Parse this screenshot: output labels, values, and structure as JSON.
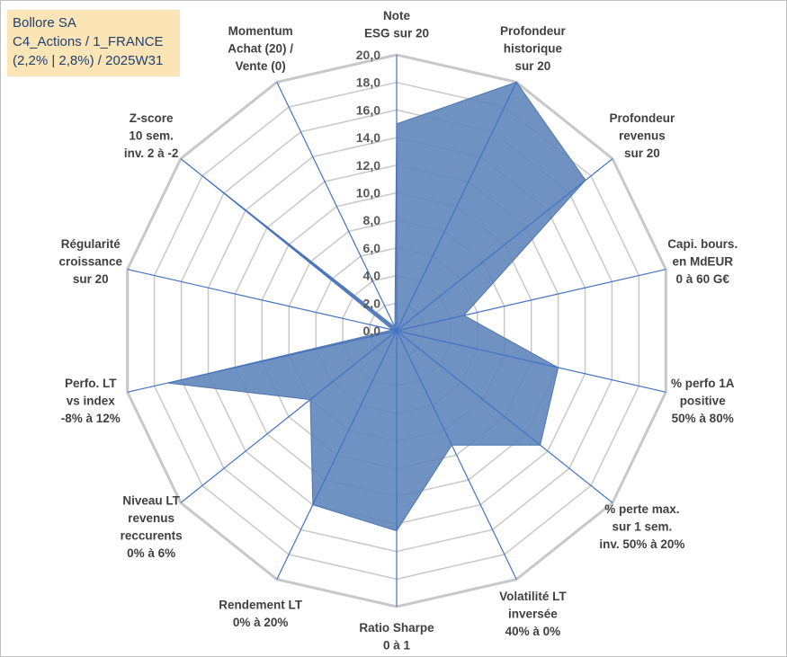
{
  "header": {
    "line1": "Bollore SA",
    "line2": "C4_Actions / 1_FRANCE",
    "line3": "(2,2% | 2,8%) / 2025W31"
  },
  "chart_data": {
    "type": "radar",
    "r_range": [
      0,
      20
    ],
    "tick_values": [
      0,
      2,
      4,
      6,
      8,
      10,
      12,
      14,
      16,
      18,
      20
    ],
    "tick_labels": [
      "0,0",
      "2,0",
      "4,0",
      "6,0",
      "8,0",
      "10,0",
      "12,0",
      "14,0",
      "16,0",
      "18,0",
      "20,0"
    ],
    "axes": [
      {
        "label": [
          "Note",
          "ESG sur 20"
        ],
        "value": 15
      },
      {
        "label": [
          "Profondeur",
          "historique",
          "sur 20"
        ],
        "value": 20
      },
      {
        "label": [
          "Profondeur",
          "revenus",
          "sur 20"
        ],
        "value": 17.5
      },
      {
        "label": [
          "Capi. bours.",
          "en MdEUR",
          "0 à 60 G€"
        ],
        "value": 5
      },
      {
        "label": [
          "% perfo 1A",
          "positive",
          "50% à 80%"
        ],
        "value": 12
      },
      {
        "label": [
          "% perte max.",
          "sur 1 sem.",
          "inv. 50% à 20%"
        ],
        "value": 13.3
      },
      {
        "label": [
          "Volatilité LT",
          "inversée",
          "40% à 0%"
        ],
        "value": 9.2
      },
      {
        "label": [
          "Ratio Sharpe",
          "0 à 1"
        ],
        "value": 14.5
      },
      {
        "label": [
          "Rendement LT",
          "0% à 20%"
        ],
        "value": 14
      },
      {
        "label": [
          "Niveau LT",
          "revenus",
          "reccurents",
          "0% à 6%"
        ],
        "value": 8
      },
      {
        "label": [
          "Perfo. LT",
          "vs index",
          "-8% à 12%"
        ],
        "value": 17
      },
      {
        "label": [
          "Régularité",
          "croissance",
          "sur 20"
        ],
        "value": 0.3
      },
      {
        "label": [
          "Z-score",
          "10 sem.",
          "inv. 2 à -2"
        ],
        "value": 18
      },
      {
        "label": [
          "Momentum",
          "Achat (20) /",
          "Vente (0)"
        ],
        "value": 0.3
      }
    ],
    "grid": true,
    "colors": {
      "fill": "#5b83b9",
      "stroke": "#4f76ad",
      "axis": "#4472c4",
      "grid": "#c8c8c8"
    }
  }
}
